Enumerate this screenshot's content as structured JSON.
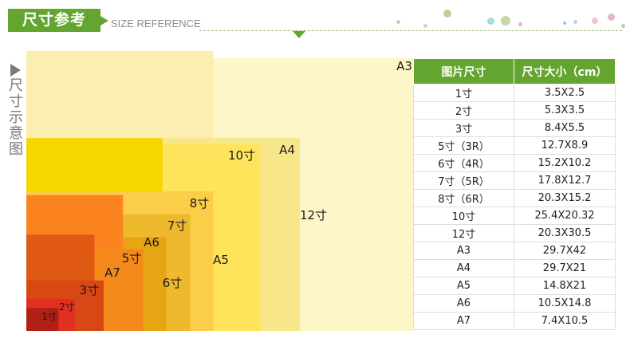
{
  "header": {
    "title": "尺寸参考",
    "subtitle": "SIZE REFERENCE",
    "accent_color": "#63a52e"
  },
  "sidebar": {
    "title": "尺寸示意图",
    "arrow_icon": "triangle-right-icon"
  },
  "decor": {
    "dot_colors": [
      "#b7d39d",
      "#f3c4d1",
      "#a8ddd6",
      "#e6b4c2",
      "#c1d9a8",
      "#8fc7e0"
    ]
  },
  "chart_data": {
    "type": "nested-rectangles",
    "units": "cm",
    "sizes": [
      {
        "label": "A3",
        "w": 29.7,
        "h": 42,
        "color": "#fdf6c8"
      },
      {
        "label": "12寸",
        "w": 20.3,
        "h": 30.5,
        "color": "#fceeb0"
      },
      {
        "label": "A4",
        "w": 29.7,
        "h": 21,
        "color": "#f8e78a"
      },
      {
        "label": "10寸",
        "w": 25.4,
        "h": 20.32,
        "color": "#fde45a"
      },
      {
        "label": "A5",
        "w": 14.8,
        "h": 21,
        "color": "#f7d600"
      },
      {
        "label": "8寸",
        "w": 20.3,
        "h": 15.2,
        "color": "#fccd48"
      },
      {
        "label": "7寸",
        "w": 17.8,
        "h": 12.7,
        "color": "#efb92e"
      },
      {
        "label": "6寸",
        "w": 15.2,
        "h": 10.2,
        "color": "#e7a514"
      },
      {
        "label": "A6",
        "w": 10.5,
        "h": 14.8,
        "color": "#fb8421"
      },
      {
        "label": "5寸",
        "w": 12.7,
        "h": 8.9,
        "color": "#f58a1c"
      },
      {
        "label": "A7",
        "w": 7.4,
        "h": 10.5,
        "color": "#e15a13"
      },
      {
        "label": "3寸",
        "w": 8.4,
        "h": 5.5,
        "color": "#d84814"
      },
      {
        "label": "2寸",
        "w": 5.3,
        "h": 3.5,
        "color": "#e03020"
      },
      {
        "label": "1寸",
        "w": 3.5,
        "h": 2.5,
        "color": "#b21f14"
      }
    ]
  },
  "table": {
    "headers": [
      "图片尺寸",
      "尺寸大小（cm）"
    ],
    "rows": [
      [
        "1寸",
        "3.5X2.5"
      ],
      [
        "2寸",
        "5.3X3.5"
      ],
      [
        "3寸",
        "8.4X5.5"
      ],
      [
        "5寸（3R）",
        "12.7X8.9"
      ],
      [
        "6寸（4R）",
        "15.2X10.2"
      ],
      [
        "7寸（5R）",
        "17.8X12.7"
      ],
      [
        "8寸（6R）",
        "20.3X15.2"
      ],
      [
        "10寸",
        "25.4X20.32"
      ],
      [
        "12寸",
        "20.3X30.5"
      ],
      [
        "A3",
        "29.7X42"
      ],
      [
        "A4",
        "29.7X21"
      ],
      [
        "A5",
        "14.8X21"
      ],
      [
        "A6",
        "10.5X14.8"
      ],
      [
        "A7",
        "7.4X10.5"
      ]
    ]
  }
}
